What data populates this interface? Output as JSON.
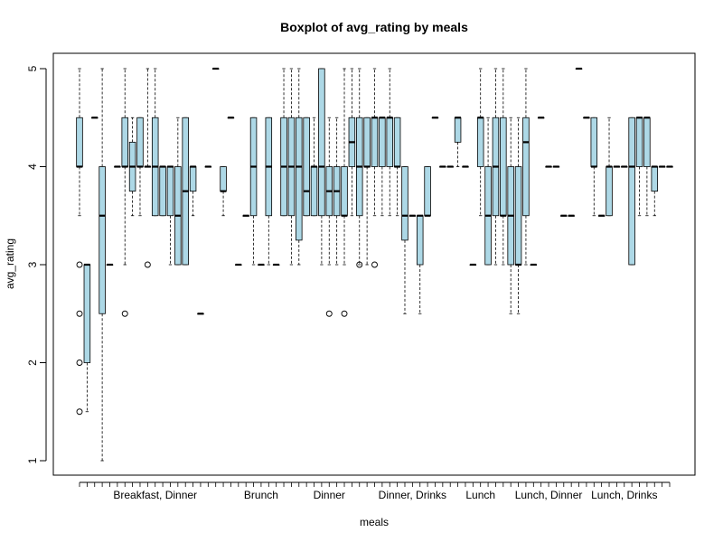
{
  "chart_data": {
    "type": "boxplot",
    "title": "Boxplot of avg_rating by meals",
    "xlabel": "meals",
    "ylabel": "avg_rating",
    "ylim": [
      1,
      5
    ],
    "yticks": [
      1,
      2,
      3,
      4,
      5
    ],
    "x_tick_labels": [
      "Breakfast, Dinner",
      "Brunch",
      "Dinner",
      "Dinner, Drinks",
      "Lunch",
      "Lunch, Dinner",
      "Lunch, Drinks"
    ],
    "x_tick_label_groups": [
      10,
      24,
      33,
      44,
      53,
      62,
      72
    ],
    "colors": {
      "box_fill": "#add8e6",
      "stroke": "#000000"
    },
    "grid": false,
    "groups": [
      {
        "q1": 4.0,
        "median": 4.0,
        "q3": 4.5,
        "lo": 3.5,
        "hi": 5.0,
        "out": [
          3.0,
          2.5,
          2.0,
          1.5
        ]
      },
      {
        "q1": 2.0,
        "median": 3.0,
        "q3": 3.0,
        "lo": 1.5,
        "hi": 3.0,
        "out": []
      },
      {
        "q1": 4.5,
        "median": 4.5,
        "q3": 4.5,
        "lo": 4.5,
        "hi": 4.5,
        "out": []
      },
      {
        "q1": 2.5,
        "median": 3.5,
        "q3": 4.0,
        "lo": 1.0,
        "hi": 5.0,
        "out": []
      },
      {
        "q1": 3.0,
        "median": 3.0,
        "q3": 3.0,
        "lo": 3.0,
        "hi": 3.0,
        "out": []
      },
      {
        "q1": 4.0,
        "median": 4.0,
        "q3": 4.0,
        "lo": 4.0,
        "hi": 4.0,
        "out": []
      },
      {
        "q1": 4.0,
        "median": 4.0,
        "q3": 4.5,
        "lo": 3.0,
        "hi": 5.0,
        "out": [
          2.5
        ]
      },
      {
        "q1": 3.75,
        "median": 4.0,
        "q3": 4.25,
        "lo": 3.5,
        "hi": 4.5,
        "out": []
      },
      {
        "q1": 4.0,
        "median": 4.0,
        "q3": 4.5,
        "lo": 3.5,
        "hi": 4.5,
        "out": []
      },
      {
        "q1": 4.0,
        "median": 4.0,
        "q3": 4.0,
        "lo": 4.0,
        "hi": 5.0,
        "out": [
          3.0
        ]
      },
      {
        "q1": 3.5,
        "median": 4.0,
        "q3": 4.5,
        "lo": 3.5,
        "hi": 5.0,
        "out": []
      },
      {
        "q1": 3.5,
        "median": 4.0,
        "q3": 4.0,
        "lo": 3.5,
        "hi": 4.0,
        "out": []
      },
      {
        "q1": 3.5,
        "median": 4.0,
        "q3": 4.0,
        "lo": 3.0,
        "hi": 4.0,
        "out": []
      },
      {
        "q1": 3.0,
        "median": 3.5,
        "q3": 4.0,
        "lo": 3.0,
        "hi": 4.5,
        "out": []
      },
      {
        "q1": 3.0,
        "median": 3.75,
        "q3": 4.5,
        "lo": 3.0,
        "hi": 4.5,
        "out": []
      },
      {
        "q1": 3.75,
        "median": 4.0,
        "q3": 4.0,
        "lo": 3.5,
        "hi": 4.0,
        "out": []
      },
      {
        "q1": 2.5,
        "median": 2.5,
        "q3": 2.5,
        "lo": 2.5,
        "hi": 2.5,
        "out": []
      },
      {
        "q1": 4.0,
        "median": 4.0,
        "q3": 4.0,
        "lo": 4.0,
        "hi": 4.0,
        "out": []
      },
      {
        "q1": 5.0,
        "median": 5.0,
        "q3": 5.0,
        "lo": 5.0,
        "hi": 5.0,
        "out": []
      },
      {
        "q1": 3.75,
        "median": 3.75,
        "q3": 4.0,
        "lo": 3.5,
        "hi": 4.0,
        "out": []
      },
      {
        "q1": 4.5,
        "median": 4.5,
        "q3": 4.5,
        "lo": 4.5,
        "hi": 4.5,
        "out": []
      },
      {
        "q1": 3.0,
        "median": 3.0,
        "q3": 3.0,
        "lo": 3.0,
        "hi": 3.0,
        "out": []
      },
      {
        "q1": 3.5,
        "median": 3.5,
        "q3": 3.5,
        "lo": 3.5,
        "hi": 3.5,
        "out": []
      },
      {
        "q1": 3.5,
        "median": 4.0,
        "q3": 4.5,
        "lo": 3.0,
        "hi": 4.5,
        "out": []
      },
      {
        "q1": 3.0,
        "median": 3.0,
        "q3": 3.0,
        "lo": 3.0,
        "hi": 3.0,
        "out": []
      },
      {
        "q1": 3.5,
        "median": 4.0,
        "q3": 4.5,
        "lo": 3.0,
        "hi": 4.5,
        "out": []
      },
      {
        "q1": 3.0,
        "median": 3.0,
        "q3": 3.0,
        "lo": 3.0,
        "hi": 3.0,
        "out": []
      },
      {
        "q1": 3.5,
        "median": 4.0,
        "q3": 4.5,
        "lo": 3.5,
        "hi": 5.0,
        "out": []
      },
      {
        "q1": 3.5,
        "median": 4.0,
        "q3": 4.5,
        "lo": 3.0,
        "hi": 5.0,
        "out": []
      },
      {
        "q1": 3.25,
        "median": 4.0,
        "q3": 4.5,
        "lo": 3.0,
        "hi": 5.0,
        "out": []
      },
      {
        "q1": 3.5,
        "median": 3.75,
        "q3": 4.5,
        "lo": 3.5,
        "hi": 4.5,
        "out": []
      },
      {
        "q1": 3.5,
        "median": 4.0,
        "q3": 4.0,
        "lo": 3.5,
        "hi": 4.5,
        "out": []
      },
      {
        "q1": 3.5,
        "median": 4.0,
        "q3": 5.0,
        "lo": 3.0,
        "hi": 5.0,
        "out": []
      },
      {
        "q1": 3.5,
        "median": 3.75,
        "q3": 4.0,
        "lo": 3.0,
        "hi": 4.5,
        "out": [
          2.5
        ]
      },
      {
        "q1": 3.5,
        "median": 3.75,
        "q3": 4.0,
        "lo": 3.0,
        "hi": 4.5,
        "out": []
      },
      {
        "q1": 3.5,
        "median": 3.5,
        "q3": 4.0,
        "lo": 3.0,
        "hi": 5.0,
        "out": [
          2.5
        ]
      },
      {
        "q1": 4.0,
        "median": 4.25,
        "q3": 4.5,
        "lo": 3.5,
        "hi": 5.0,
        "out": []
      },
      {
        "q1": 3.5,
        "median": 4.0,
        "q3": 4.5,
        "lo": 3.0,
        "hi": 5.0,
        "out": [
          3.0
        ]
      },
      {
        "q1": 4.0,
        "median": 4.0,
        "q3": 4.5,
        "lo": 3.0,
        "hi": 4.5,
        "out": []
      },
      {
        "q1": 4.0,
        "median": 4.5,
        "q3": 4.5,
        "lo": 3.5,
        "hi": 5.0,
        "out": [
          3.0
        ]
      },
      {
        "q1": 4.0,
        "median": 4.5,
        "q3": 4.5,
        "lo": 3.5,
        "hi": 4.5,
        "out": []
      },
      {
        "q1": 4.0,
        "median": 4.5,
        "q3": 4.5,
        "lo": 3.5,
        "hi": 5.0,
        "out": []
      },
      {
        "q1": 4.0,
        "median": 4.0,
        "q3": 4.5,
        "lo": 3.5,
        "hi": 4.5,
        "out": []
      },
      {
        "q1": 3.25,
        "median": 3.5,
        "q3": 4.0,
        "lo": 2.5,
        "hi": 4.0,
        "out": []
      },
      {
        "q1": 3.5,
        "median": 3.5,
        "q3": 3.5,
        "lo": 3.5,
        "hi": 3.5,
        "out": []
      },
      {
        "q1": 3.0,
        "median": 3.5,
        "q3": 3.5,
        "lo": 2.5,
        "hi": 3.5,
        "out": []
      },
      {
        "q1": 3.5,
        "median": 3.5,
        "q3": 4.0,
        "lo": 3.5,
        "hi": 4.0,
        "out": []
      },
      {
        "q1": 4.5,
        "median": 4.5,
        "q3": 4.5,
        "lo": 4.5,
        "hi": 4.5,
        "out": []
      },
      {
        "q1": 4.0,
        "median": 4.0,
        "q3": 4.0,
        "lo": 4.0,
        "hi": 4.0,
        "out": []
      },
      {
        "q1": 4.0,
        "median": 4.0,
        "q3": 4.0,
        "lo": 4.0,
        "hi": 4.0,
        "out": []
      },
      {
        "q1": 4.25,
        "median": 4.5,
        "q3": 4.5,
        "lo": 4.0,
        "hi": 4.5,
        "out": []
      },
      {
        "q1": 4.0,
        "median": 4.0,
        "q3": 4.0,
        "lo": 4.0,
        "hi": 4.0,
        "out": []
      },
      {
        "q1": 3.0,
        "median": 3.0,
        "q3": 3.0,
        "lo": 3.0,
        "hi": 3.0,
        "out": []
      },
      {
        "q1": 4.0,
        "median": 4.5,
        "q3": 4.5,
        "lo": 3.5,
        "hi": 5.0,
        "out": []
      },
      {
        "q1": 3.0,
        "median": 3.5,
        "q3": 4.0,
        "lo": 3.0,
        "hi": 4.5,
        "out": []
      },
      {
        "q1": 3.5,
        "median": 4.0,
        "q3": 4.5,
        "lo": 3.0,
        "hi": 5.0,
        "out": []
      },
      {
        "q1": 3.5,
        "median": 3.5,
        "q3": 4.5,
        "lo": 3.0,
        "hi": 5.0,
        "out": []
      },
      {
        "q1": 3.0,
        "median": 3.5,
        "q3": 4.0,
        "lo": 2.5,
        "hi": 4.5,
        "out": []
      },
      {
        "q1": 3.0,
        "median": 3.0,
        "q3": 4.0,
        "lo": 2.5,
        "hi": 4.5,
        "out": []
      },
      {
        "q1": 3.5,
        "median": 4.25,
        "q3": 4.5,
        "lo": 3.0,
        "hi": 5.0,
        "out": []
      },
      {
        "q1": 3.0,
        "median": 3.0,
        "q3": 3.0,
        "lo": 3.0,
        "hi": 3.0,
        "out": []
      },
      {
        "q1": 4.5,
        "median": 4.5,
        "q3": 4.5,
        "lo": 4.5,
        "hi": 4.5,
        "out": []
      },
      {
        "q1": 4.0,
        "median": 4.0,
        "q3": 4.0,
        "lo": 4.0,
        "hi": 4.0,
        "out": []
      },
      {
        "q1": 4.0,
        "median": 4.0,
        "q3": 4.0,
        "lo": 4.0,
        "hi": 4.0,
        "out": []
      },
      {
        "q1": 3.5,
        "median": 3.5,
        "q3": 3.5,
        "lo": 3.5,
        "hi": 3.5,
        "out": []
      },
      {
        "q1": 3.5,
        "median": 3.5,
        "q3": 3.5,
        "lo": 3.5,
        "hi": 3.5,
        "out": []
      },
      {
        "q1": 5.0,
        "median": 5.0,
        "q3": 5.0,
        "lo": 5.0,
        "hi": 5.0,
        "out": []
      },
      {
        "q1": 4.5,
        "median": 4.5,
        "q3": 4.5,
        "lo": 4.5,
        "hi": 4.5,
        "out": []
      },
      {
        "q1": 4.0,
        "median": 4.0,
        "q3": 4.5,
        "lo": 3.5,
        "hi": 4.5,
        "out": []
      },
      {
        "q1": 3.5,
        "median": 3.5,
        "q3": 3.5,
        "lo": 3.5,
        "hi": 3.5,
        "out": []
      },
      {
        "q1": 3.5,
        "median": 4.0,
        "q3": 4.0,
        "lo": 3.5,
        "hi": 4.5,
        "out": []
      },
      {
        "q1": 4.0,
        "median": 4.0,
        "q3": 4.0,
        "lo": 4.0,
        "hi": 4.0,
        "out": []
      },
      {
        "q1": 4.0,
        "median": 4.0,
        "q3": 4.0,
        "lo": 4.0,
        "hi": 4.0,
        "out": []
      },
      {
        "q1": 3.0,
        "median": 4.0,
        "q3": 4.5,
        "lo": 3.0,
        "hi": 4.5,
        "out": []
      },
      {
        "q1": 4.0,
        "median": 4.5,
        "q3": 4.5,
        "lo": 3.5,
        "hi": 4.5,
        "out": []
      },
      {
        "q1": 4.0,
        "median": 4.5,
        "q3": 4.5,
        "lo": 3.5,
        "hi": 4.5,
        "out": []
      },
      {
        "q1": 3.75,
        "median": 4.0,
        "q3": 4.0,
        "lo": 3.5,
        "hi": 4.0,
        "out": []
      },
      {
        "q1": 4.0,
        "median": 4.0,
        "q3": 4.0,
        "lo": 4.0,
        "hi": 4.0,
        "out": []
      },
      {
        "q1": 4.0,
        "median": 4.0,
        "q3": 4.0,
        "lo": 4.0,
        "hi": 4.0,
        "out": []
      }
    ]
  }
}
